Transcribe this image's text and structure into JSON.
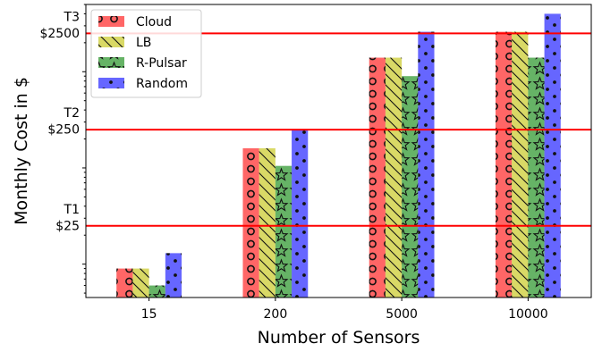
{
  "chart_data": {
    "type": "bar",
    "xlabel": "Number of Sensors",
    "ylabel": "Monthly Cost in $",
    "yscale": "log",
    "ylim": [
      4.5,
      5000
    ],
    "categories": [
      "15",
      "200",
      "5000",
      "10000"
    ],
    "series": [
      {
        "name": "Cloud",
        "values": [
          9,
          160,
          1400,
          2600
        ],
        "color": "#ff0000",
        "pattern": "circles"
      },
      {
        "name": "LB",
        "values": [
          9,
          160,
          1400,
          2600
        ],
        "color": "#bfbf00",
        "pattern": "diagonal-lines"
      },
      {
        "name": "R-Pulsar",
        "values": [
          6,
          105,
          900,
          1400
        ],
        "color": "#008000",
        "pattern": "stars"
      },
      {
        "name": "Random",
        "values": [
          13,
          250,
          2600,
          4000
        ],
        "color": "#0000ff",
        "pattern": "dots"
      }
    ],
    "thresholds": [
      {
        "tier": "T1",
        "label": "$25",
        "value": 25
      },
      {
        "tier": "T2",
        "label": "$250",
        "value": 250
      },
      {
        "tier": "T3",
        "label": "$2500",
        "value": 2500
      }
    ],
    "threshold_color": "#ff0000",
    "legend": {
      "position": "upper-left"
    },
    "grid": false
  }
}
